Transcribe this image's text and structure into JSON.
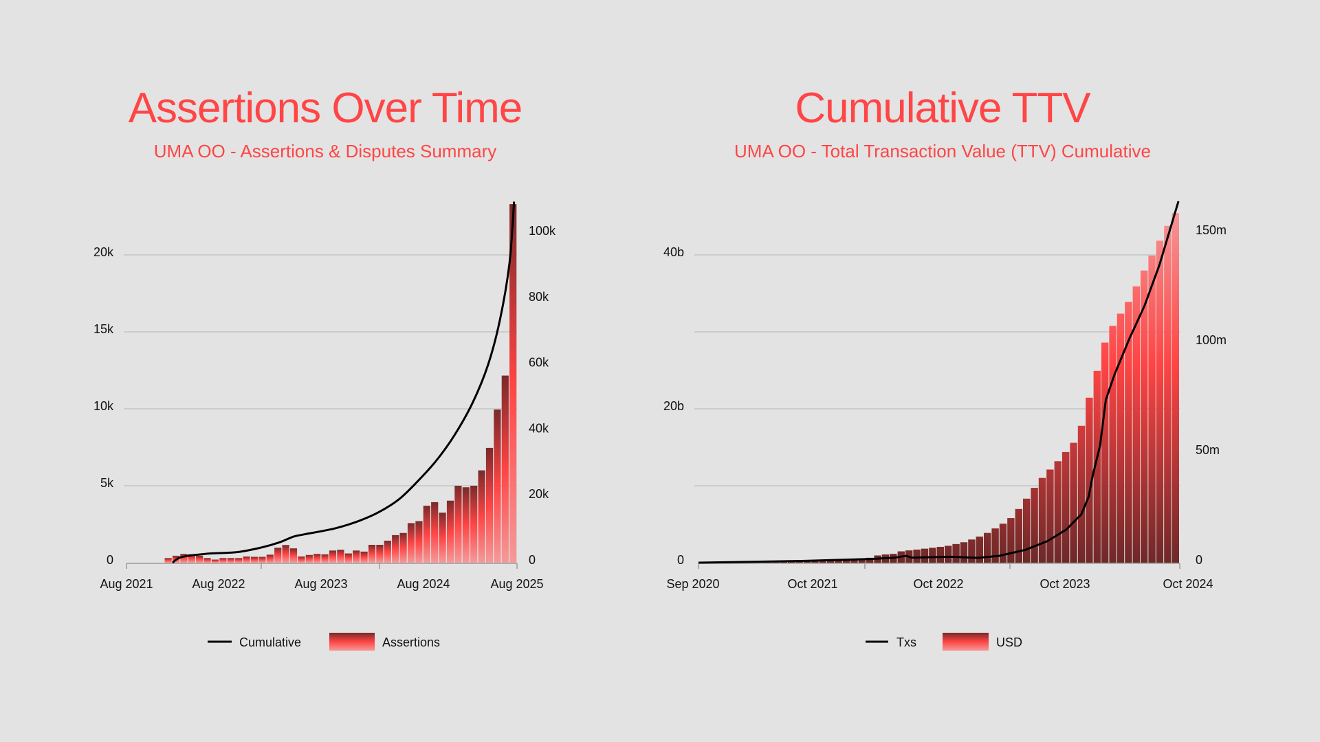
{
  "chart_data": [
    {
      "type": "bar",
      "title": "Assertions Over Time",
      "subtitle": "UMA OO - Assertions & Disputes Summary",
      "x_ticks": [
        "Aug 2021",
        "Aug 2022",
        "Aug 2023",
        "Aug 2024",
        "Aug 2025"
      ],
      "y_left_ticks": [
        "0",
        "5k",
        "10k",
        "15k",
        "20k"
      ],
      "y_right_ticks": [
        "0",
        "20k",
        "40k",
        "60k",
        "80k",
        "100k"
      ],
      "ylim_left": [
        0,
        23500
      ],
      "ylim_right": [
        0,
        110000
      ],
      "grid": true,
      "legend_position": "bottom",
      "legend": [
        "Cumulative",
        "Assertions"
      ],
      "categories": [
        "2021-12",
        "2022-01",
        "2022-02",
        "2022-03",
        "2022-04",
        "2022-05",
        "2022-06",
        "2022-07",
        "2022-08",
        "2022-09",
        "2022-10",
        "2022-11",
        "2022-12",
        "2023-01",
        "2023-02",
        "2023-03",
        "2023-04",
        "2023-05",
        "2023-06",
        "2023-07",
        "2023-08",
        "2023-09",
        "2023-10",
        "2023-11",
        "2023-12",
        "2024-01",
        "2024-02",
        "2024-03",
        "2024-04",
        "2024-05",
        "2024-06",
        "2024-07",
        "2024-08",
        "2024-09",
        "2024-10",
        "2024-11",
        "2024-12",
        "2025-01",
        "2025-02",
        "2025-03",
        "2025-04",
        "2025-05",
        "2025-06",
        "2025-07",
        "2025-08"
      ],
      "series": [
        {
          "name": "Assertions",
          "type": "bar",
          "axis": "left",
          "values": [
            300,
            450,
            570,
            550,
            460,
            300,
            200,
            300,
            300,
            300,
            400,
            380,
            380,
            520,
            970,
            1150,
            930,
            400,
            500,
            570,
            540,
            790,
            840,
            600,
            790,
            720,
            1160,
            1160,
            1430,
            1790,
            1930,
            2570,
            2700,
            3700,
            3930,
            3250,
            4030,
            5000,
            4900,
            5000,
            6000,
            7460,
            9950,
            12160,
            23300
          ]
        },
        {
          "name": "Cumulative",
          "type": "line",
          "axis": "right",
          "points": [
            [
              "2022-01-20",
              0
            ],
            [
              "2022-02-23",
              1700
            ],
            [
              "2022-05-26",
              2700
            ],
            [
              "2022-09-18",
              3200
            ],
            [
              "2022-12-18",
              4600
            ],
            [
              "2023-02-25",
              6200
            ],
            [
              "2023-04-17",
              7900
            ],
            [
              "2023-05-27",
              8600
            ],
            [
              "2023-09-19",
              10400
            ],
            [
              "2023-12-19",
              12700
            ],
            [
              "2024-03-03",
              15400
            ],
            [
              "2024-05-17",
              19300
            ],
            [
              "2024-07-25",
              24700
            ],
            [
              "2024-10-02",
              30900
            ],
            [
              "2024-12-09",
              38600
            ],
            [
              "2025-02-16",
              48600
            ],
            [
              "2025-04-15",
              60200
            ],
            [
              "2025-05-30",
              74100
            ],
            [
              "2025-07-04",
              91100
            ],
            [
              "2025-07-21",
              109700
            ]
          ]
        }
      ]
    },
    {
      "type": "area",
      "title": "Cumulative TTV",
      "subtitle": "UMA OO - Total Transaction Value (TTV) Cumulative",
      "x_ticks": [
        "Sep 2020",
        "Oct 2021",
        "Oct 2022",
        "Oct 2023",
        "Oct 2024"
      ],
      "y_left_ticks": [
        "0",
        "20b",
        "40b"
      ],
      "y_right_ticks": [
        "0",
        "50m",
        "100m",
        "150m"
      ],
      "ylim_left": [
        0,
        47000000000
      ],
      "ylim_right": [
        0,
        165000000
      ],
      "grid": true,
      "legend_position": "bottom",
      "legend": [
        "Txs",
        "USD"
      ],
      "series": [
        {
          "name": "USD",
          "type": "area",
          "axis": "left",
          "points": [
            [
              "2020-09-01",
              0
            ],
            [
              "2021-08-22",
              170000000
            ],
            [
              "2022-02-24",
              600000000
            ],
            [
              "2022-03-28",
              1000000000
            ],
            [
              "2022-05-14",
              1160000000
            ],
            [
              "2022-06-06",
              1500000000
            ],
            [
              "2022-07-22",
              1700000000
            ],
            [
              "2022-10-23",
              2150000000
            ],
            [
              "2022-12-20",
              2700000000
            ],
            [
              "2023-02-15",
              3600000000
            ],
            [
              "2023-04-02",
              4700000000
            ],
            [
              "2023-05-06",
              5600000000
            ],
            [
              "2023-06-10",
              7300000000
            ],
            [
              "2023-08-06",
              10600000000
            ],
            [
              "2023-10-03",
              13200000000
            ],
            [
              "2023-12-07",
              16400000000
            ],
            [
              "2023-12-24",
              19500000000
            ],
            [
              "2024-01-16",
              22500000000
            ],
            [
              "2024-02-09",
              26100000000
            ],
            [
              "2024-03-01",
              29300000000
            ],
            [
              "2024-03-25",
              31100000000
            ],
            [
              "2024-05-10",
              34000000000
            ],
            [
              "2024-06-25",
              37900000000
            ],
            [
              "2024-07-30",
              40700000000
            ],
            [
              "2024-09-26",
              45300000000
            ]
          ]
        },
        {
          "name": "Txs",
          "type": "line",
          "axis": "right",
          "points": [
            [
              "2020-09-01",
              0
            ],
            [
              "2021-07-18",
              800000
            ],
            [
              "2022-02-24",
              1700000
            ],
            [
              "2022-05-03",
              2300000
            ],
            [
              "2022-06-06",
              3100000
            ],
            [
              "2022-06-24",
              2300000
            ],
            [
              "2022-10-23",
              2700000
            ],
            [
              "2023-01-13",
              2200000
            ],
            [
              "2023-03-21",
              3100000
            ],
            [
              "2023-06-10",
              5800000
            ],
            [
              "2023-08-18",
              9800000
            ],
            [
              "2023-10-15",
              15000000
            ],
            [
              "2023-12-01",
              22000000
            ],
            [
              "2023-12-24",
              30100000
            ],
            [
              "2024-01-05",
              39400000
            ],
            [
              "2024-01-28",
              53200000
            ],
            [
              "2024-02-15",
              74100000
            ],
            [
              "2024-03-13",
              85600000
            ],
            [
              "2024-04-28",
              101900000
            ],
            [
              "2024-06-14",
              116900000
            ],
            [
              "2024-07-30",
              135400000
            ],
            [
              "2024-09-27",
              164400000
            ]
          ]
        }
      ]
    }
  ],
  "colors": {
    "background": "#e3e3e3",
    "title": "#ff4545",
    "line": "#000000",
    "bar_dark": "#7a2a2a",
    "bar_bright": "#ff4444",
    "bar_light": "#f49a9a",
    "grid": "#b5b5b5"
  }
}
